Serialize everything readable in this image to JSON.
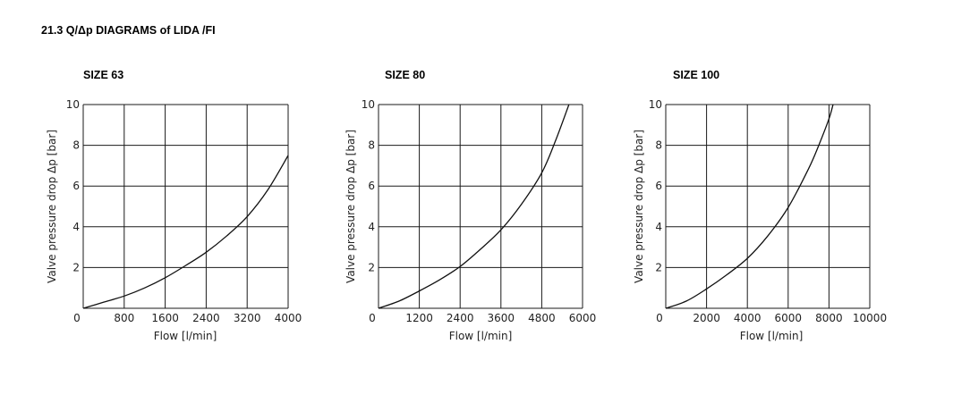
{
  "section_title": "21.3  Q/Δp DIAGRAMS of LIDA /FI",
  "colors": {
    "curve": "#111111",
    "grid": "#1a1a1a",
    "text": "#222222"
  },
  "chart_data": [
    {
      "type": "line",
      "title": "SIZE 63",
      "xlabel": "Flow [l/min]",
      "ylabel": "Valve pressure drop Δp [bar]",
      "xlim": [
        0,
        4000
      ],
      "ylim": [
        0,
        10
      ],
      "xticks": [
        0,
        800,
        1600,
        2400,
        3200,
        4000
      ],
      "yticks": [
        2,
        4,
        6,
        8,
        10
      ],
      "grid": true,
      "series": [
        {
          "x": [
            0,
            400,
            800,
            1200,
            1600,
            2000,
            2400,
            2800,
            3200,
            3600,
            4000
          ],
          "y": [
            0,
            0.3,
            0.6,
            1.0,
            1.5,
            2.1,
            2.75,
            3.55,
            4.5,
            5.8,
            7.5
          ]
        }
      ]
    },
    {
      "type": "line",
      "title": "SIZE 80",
      "xlabel": "Flow [l/min]",
      "ylabel": "Valve pressure drop Δp [bar]",
      "xlim": [
        0,
        6000
      ],
      "ylim": [
        0,
        10
      ],
      "xticks": [
        0,
        1200,
        2400,
        3600,
        4800,
        6000
      ],
      "yticks": [
        2,
        4,
        6,
        8,
        10
      ],
      "grid": true,
      "series": [
        {
          "x": [
            0,
            600,
            1200,
            1800,
            2400,
            3000,
            3600,
            4200,
            4800,
            5200,
            5600
          ],
          "y": [
            0,
            0.35,
            0.85,
            1.4,
            2.05,
            2.9,
            3.85,
            5.1,
            6.65,
            8.2,
            10.0
          ]
        }
      ]
    },
    {
      "type": "line",
      "title": "SIZE 100",
      "xlabel": "Flow [l/min]",
      "ylabel": "Valve pressure drop Δp [bar]",
      "xlim": [
        0,
        10000
      ],
      "ylim": [
        0,
        10
      ],
      "xticks": [
        0,
        2000,
        4000,
        6000,
        8000,
        10000
      ],
      "yticks": [
        2,
        4,
        6,
        8,
        10
      ],
      "grid": true,
      "series": [
        {
          "x": [
            0,
            1000,
            2000,
            3000,
            4000,
            5000,
            6000,
            7000,
            7500,
            8000,
            8200
          ],
          "y": [
            0,
            0.35,
            0.95,
            1.65,
            2.45,
            3.55,
            4.95,
            6.85,
            8.0,
            9.3,
            10.0
          ]
        }
      ]
    }
  ]
}
